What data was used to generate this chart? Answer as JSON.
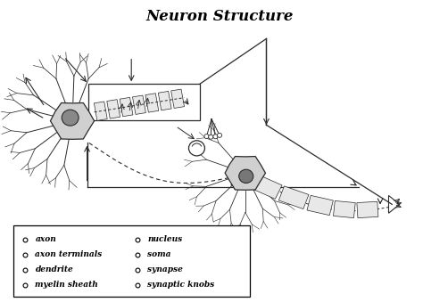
{
  "title": "Neuron Structure",
  "title_fontsize": 12,
  "bg_color": "#ffffff",
  "legend_items_col1": [
    "axon",
    "axon terminals",
    "dendrite",
    "myelin sheath"
  ],
  "legend_items_col2": [
    "nucleus",
    "soma",
    "synapse",
    "synaptic knobs"
  ],
  "figsize": [
    4.74,
    3.39
  ],
  "dpi": 100,
  "line_color": "#2a2a2a",
  "soma1": [
    1.7,
    4.5
  ],
  "soma2": [
    5.8,
    3.2
  ],
  "soma1_r": 0.52,
  "soma2_r": 0.48,
  "nuc1_r": 0.2,
  "nuc2_r": 0.17
}
